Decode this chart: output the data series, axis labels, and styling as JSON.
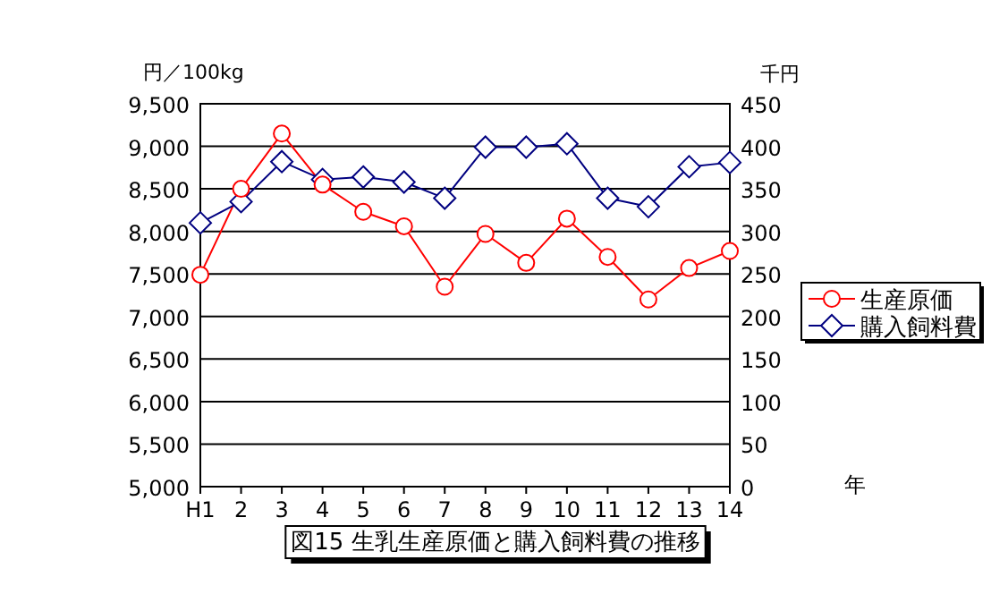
{
  "chart_data": {
    "type": "line",
    "title": "図15 生乳生産原価と購入飼料費の推移",
    "xlabel": "年",
    "ylabel": "円／100kg",
    "y2label": "千円",
    "categories": [
      "H1",
      "2",
      "3",
      "4",
      "5",
      "6",
      "7",
      "8",
      "9",
      "10",
      "11",
      "12",
      "13",
      "14"
    ],
    "series": [
      {
        "name": "生産原価",
        "color": "#ff0000",
        "marker": "circle",
        "values": [
          7490,
          8500,
          9150,
          8550,
          8230,
          8060,
          7350,
          7970,
          7630,
          8150,
          7700,
          7200,
          7570,
          7770
        ]
      },
      {
        "name": "購入飼料費",
        "color": "#000080",
        "marker": "diamond",
        "axis": "y2",
        "values": [
          310,
          335,
          382,
          361,
          364,
          358,
          339,
          399,
          399,
          403,
          339,
          329,
          376,
          381
        ]
      }
    ],
    "ylim": [
      5000,
      9500
    ],
    "yticks": [
      {
        "value": 5000,
        "label": "5,000"
      },
      {
        "value": 5500,
        "label": "5,500"
      },
      {
        "value": 6000,
        "label": "6,000"
      },
      {
        "value": 6500,
        "label": "6,500"
      },
      {
        "value": 7000,
        "label": "7,000"
      },
      {
        "value": 7500,
        "label": "7,500"
      },
      {
        "value": 8000,
        "label": "8,000"
      },
      {
        "value": 8500,
        "label": "8,500"
      },
      {
        "value": 9000,
        "label": "9,000"
      },
      {
        "value": 9500,
        "label": "9,500"
      }
    ],
    "y2lim": [
      0,
      450
    ],
    "y2ticks": [
      0,
      50,
      100,
      150,
      200,
      250,
      300,
      350,
      400,
      450
    ],
    "grid": "y",
    "legend": "right"
  }
}
